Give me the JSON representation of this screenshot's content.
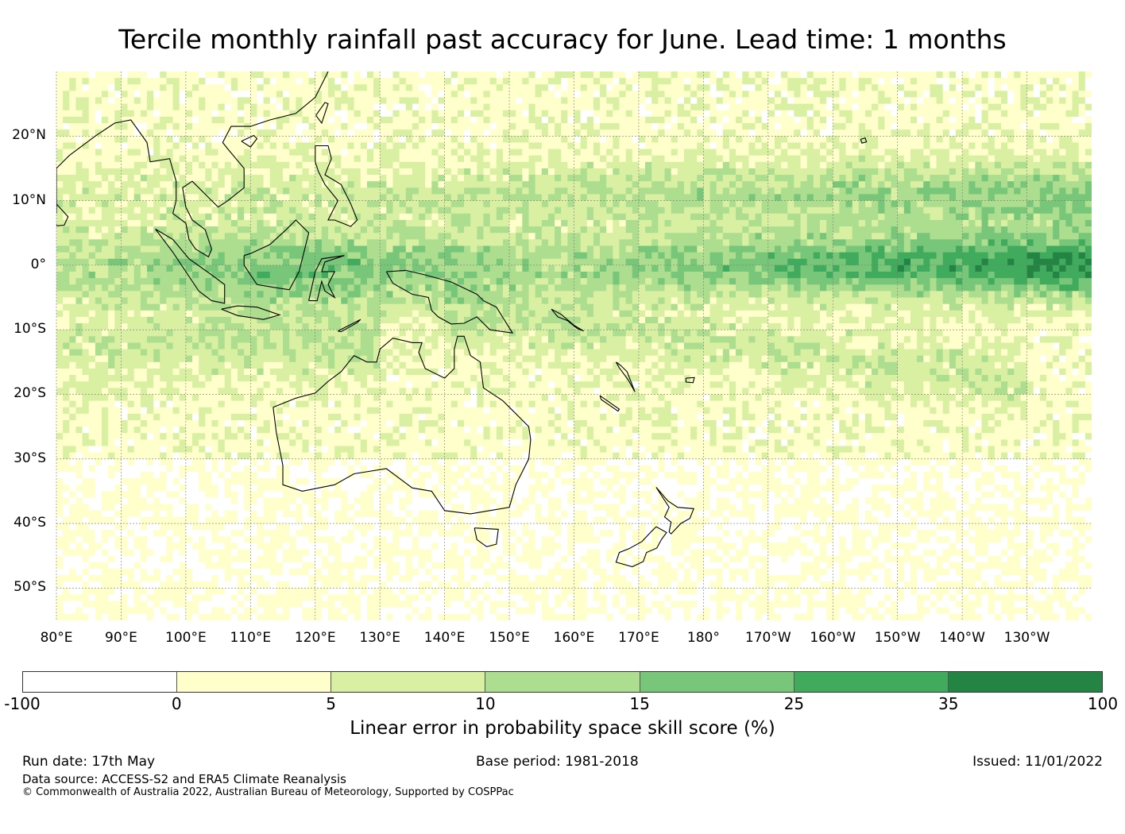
{
  "title": "Tercile monthly rainfall past accuracy for June. Lead time: 1 months",
  "map": {
    "region": "Western Pacific / Australia",
    "lat_labels": [
      "20°N",
      "10°N",
      "0°",
      "10°S",
      "20°S",
      "30°S",
      "40°S",
      "50°S"
    ],
    "lat_values": [
      20,
      10,
      0,
      -10,
      -20,
      -30,
      -40,
      -50
    ],
    "lon_labels": [
      "80°E",
      "90°E",
      "100°E",
      "110°E",
      "120°E",
      "130°E",
      "140°E",
      "150°E",
      "160°E",
      "170°E",
      "180°",
      "170°W",
      "160°W",
      "150°W",
      "140°W",
      "130°W"
    ],
    "lon_values": [
      80,
      90,
      100,
      110,
      120,
      130,
      140,
      150,
      160,
      170,
      180,
      190,
      200,
      210,
      220,
      230
    ],
    "lon_range": [
      80,
      240
    ],
    "lat_range": [
      -55,
      30
    ],
    "gridlines": true
  },
  "colorbar": {
    "label": "Linear error in probability space skill score (%)",
    "ticks": [
      "-100",
      "0",
      "5",
      "10",
      "15",
      "25",
      "35",
      "100"
    ],
    "colors": [
      "#ffffff",
      "#ffffcc",
      "#d9f0a3",
      "#addd8e",
      "#78c679",
      "#41ab5d",
      "#238443"
    ]
  },
  "footer": {
    "run_date": "Run date: 17th May",
    "base_period": "Base period: 1981-2018",
    "issued": "Issued: 11/01/2022",
    "data_source": "Data source: ACCESS-S2 and ERA5 Climate Reanalysis",
    "copyright": "© Commonwealth of Australia 2022, Australian Bureau of Meteorology, Supported by COSPPac"
  }
}
